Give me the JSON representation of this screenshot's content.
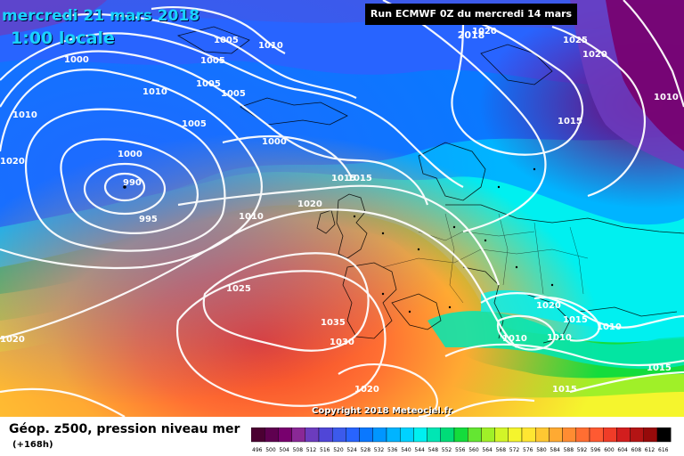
{
  "header": {
    "date": "mercredi 21 mars 2018",
    "time": "1:00 locale",
    "run": "Run ECMWF 0Z du mercredi 14 mars 2018"
  },
  "footer": {
    "copyright": "Copyright 2018 Meteociel.fr",
    "legend_title": "Géop. z500, pression niveau mer",
    "legend_subtitle": "(+168h)"
  },
  "legend_scale": {
    "values": [
      "496",
      "500",
      "504",
      "508",
      "512",
      "516",
      "520",
      "524",
      "528",
      "532",
      "536",
      "540",
      "544",
      "548",
      "552",
      "556",
      "560",
      "564",
      "568",
      "572",
      "576",
      "580",
      "584",
      "588",
      "592",
      "596",
      "600",
      "604",
      "608",
      "612",
      "616"
    ],
    "colors": [
      "#4b0032",
      "#5f0050",
      "#78006e",
      "#8a2896",
      "#6c3cbe",
      "#5046d7",
      "#3c5aeb",
      "#2864ff",
      "#0a78ff",
      "#0096ff",
      "#00b4ff",
      "#00d2ff",
      "#00f0f0",
      "#00e6b4",
      "#00dc78",
      "#14dc3c",
      "#64e632",
      "#a0f028",
      "#d2f528",
      "#f5f52d",
      "#ffe632",
      "#ffc832",
      "#ffaa32",
      "#ff8c32",
      "#ff6e32",
      "#ff5a32",
      "#f03c28",
      "#d21e1e",
      "#b41414",
      "#960a0a",
      "#000000"
    ]
  },
  "isobar_labels": [
    "1000",
    "1005",
    "1010",
    "1005",
    "1005",
    "1005",
    "1010",
    "1010",
    "1005",
    "1000",
    "1000",
    "990",
    "995",
    "1010",
    "1015",
    "1015",
    "1020",
    "1020",
    "1025",
    "1020",
    "1010",
    "1025",
    "1035",
    "1030",
    "1020",
    "1020",
    "1015",
    "1015",
    "1010",
    "1010",
    "1010",
    "1015",
    "1015",
    "1020",
    "1020"
  ]
}
